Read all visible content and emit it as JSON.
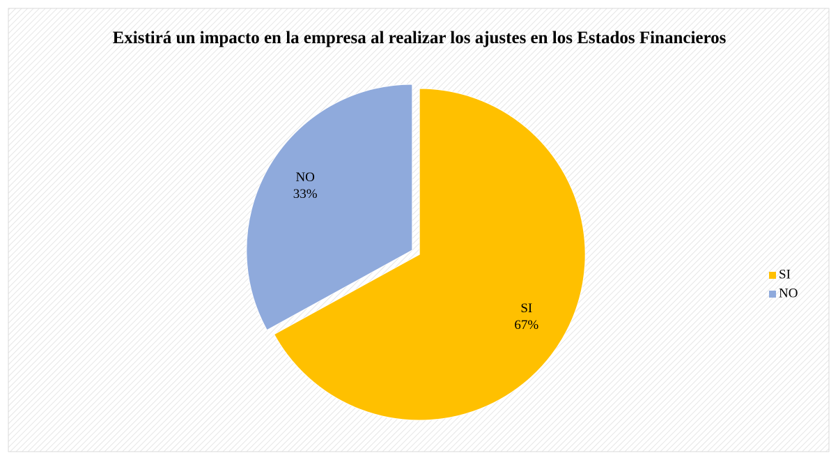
{
  "chart_data": {
    "type": "pie",
    "title": "Existirá un impacto en la empresa al realizar los ajustes en los Estados Financieros",
    "categories": [
      "SI",
      "NO"
    ],
    "values": [
      67,
      33
    ],
    "value_labels": [
      "67%",
      "33%"
    ],
    "colors": [
      "#FFC000",
      "#8FAADC"
    ],
    "legend": "right"
  }
}
